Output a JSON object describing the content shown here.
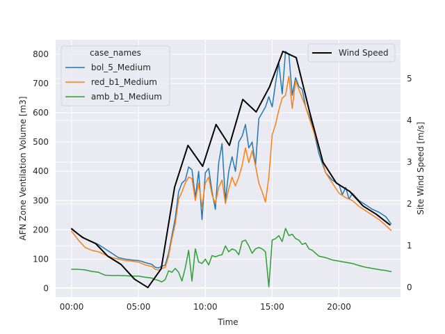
{
  "chart_data": {
    "type": "line",
    "xlabel": "Time",
    "ylabel_left": "AFN Zone Ventilation Volume [m3]",
    "ylabel_right": "Site Wind Speed [m/s]",
    "x_range_hours": [
      -1.2,
      24.6
    ],
    "x_ticks": [
      {
        "hour": 0,
        "label": "00:00"
      },
      {
        "hour": 5,
        "label": "05:00"
      },
      {
        "hour": 10,
        "label": "10:00"
      },
      {
        "hour": 15,
        "label": "15:00"
      },
      {
        "hour": 20,
        "label": "20:00"
      }
    ],
    "ylim_left": [
      -30,
      850
    ],
    "yticks_left": [
      0,
      100,
      200,
      300,
      400,
      500,
      600,
      700,
      800
    ],
    "ylim_right": [
      -0.23,
      5.93
    ],
    "yticks_right": [
      0,
      1,
      2,
      3,
      4,
      5
    ],
    "grid": true,
    "legend_left": {
      "title": "case_names",
      "placement": "upper-left"
    },
    "legend_right": {
      "placement": "upper-right"
    },
    "series": [
      {
        "name": "bol_5_Medium",
        "axis": "left",
        "color": "#1f77b4",
        "points": [
          [
            0,
            205
          ],
          [
            0.5,
            185
          ],
          [
            1,
            170
          ],
          [
            1.5,
            160
          ],
          [
            2,
            150
          ],
          [
            2.5,
            135
          ],
          [
            3,
            120
          ],
          [
            3.5,
            105
          ],
          [
            4,
            100
          ],
          [
            4.5,
            97
          ],
          [
            5,
            95
          ],
          [
            5.25,
            92
          ],
          [
            5.5,
            88
          ],
          [
            6,
            82
          ],
          [
            6.25,
            72
          ],
          [
            6.5,
            70
          ],
          [
            6.75,
            75
          ],
          [
            7,
            80
          ],
          [
            7.25,
            120
          ],
          [
            7.5,
            180
          ],
          [
            7.75,
            240
          ],
          [
            8,
            330
          ],
          [
            8.25,
            360
          ],
          [
            8.5,
            370
          ],
          [
            8.75,
            415
          ],
          [
            9,
            405
          ],
          [
            9.25,
            310
          ],
          [
            9.5,
            400
          ],
          [
            9.75,
            235
          ],
          [
            10,
            395
          ],
          [
            10.25,
            410
          ],
          [
            10.5,
            330
          ],
          [
            10.75,
            270
          ],
          [
            11,
            430
          ],
          [
            11.25,
            495
          ],
          [
            11.5,
            300
          ],
          [
            11.75,
            400
          ],
          [
            12,
            450
          ],
          [
            12.25,
            400
          ],
          [
            12.5,
            500
          ],
          [
            12.75,
            520
          ],
          [
            13,
            560
          ],
          [
            13.25,
            480
          ],
          [
            13.5,
            500
          ],
          [
            13.75,
            420
          ],
          [
            14,
            580
          ],
          [
            14.25,
            600
          ],
          [
            14.5,
            620
          ],
          [
            14.75,
            655
          ],
          [
            15,
            620
          ],
          [
            15.25,
            700
          ],
          [
            15.5,
            770
          ],
          [
            15.75,
            665
          ],
          [
            16,
            810
          ],
          [
            16.25,
            800
          ],
          [
            16.5,
            660
          ],
          [
            16.75,
            720
          ],
          [
            17,
            690
          ],
          [
            17.25,
            680
          ],
          [
            17.5,
            620
          ],
          [
            17.75,
            590
          ],
          [
            18,
            560
          ],
          [
            18.5,
            460
          ],
          [
            19,
            395
          ],
          [
            19.5,
            370
          ],
          [
            20,
            355
          ],
          [
            20.25,
            320
          ],
          [
            20.5,
            345
          ],
          [
            20.75,
            305
          ],
          [
            21,
            325
          ],
          [
            21.5,
            300
          ],
          [
            22,
            285
          ],
          [
            22.5,
            270
          ],
          [
            23,
            260
          ],
          [
            23.5,
            245
          ],
          [
            23.9,
            220
          ]
        ]
      },
      {
        "name": "red_b1_Medium",
        "axis": "left",
        "color": "#ff7f0e",
        "points": [
          [
            0,
            195
          ],
          [
            0.5,
            165
          ],
          [
            1,
            140
          ],
          [
            1.5,
            130
          ],
          [
            2,
            125
          ],
          [
            2.5,
            115
          ],
          [
            3,
            105
          ],
          [
            3.5,
            100
          ],
          [
            4,
            95
          ],
          [
            4.5,
            93
          ],
          [
            5,
            90
          ],
          [
            5.25,
            85
          ],
          [
            5.5,
            80
          ],
          [
            6,
            75
          ],
          [
            6.25,
            65
          ],
          [
            6.5,
            63
          ],
          [
            6.75,
            68
          ],
          [
            7,
            72
          ],
          [
            7.25,
            110
          ],
          [
            7.5,
            170
          ],
          [
            7.75,
            220
          ],
          [
            8,
            305
          ],
          [
            8.25,
            330
          ],
          [
            8.5,
            360
          ],
          [
            8.75,
            380
          ],
          [
            9,
            375
          ],
          [
            9.25,
            300
          ],
          [
            9.5,
            360
          ],
          [
            9.75,
            280
          ],
          [
            10,
            360
          ],
          [
            10.25,
            380
          ],
          [
            10.5,
            320
          ],
          [
            10.75,
            290
          ],
          [
            11,
            345
          ],
          [
            11.25,
            370
          ],
          [
            11.5,
            290
          ],
          [
            11.75,
            340
          ],
          [
            12,
            380
          ],
          [
            12.25,
            350
          ],
          [
            12.5,
            380
          ],
          [
            12.75,
            420
          ],
          [
            13,
            480
          ],
          [
            13.25,
            430
          ],
          [
            13.5,
            470
          ],
          [
            13.75,
            420
          ],
          [
            14,
            360
          ],
          [
            14.25,
            330
          ],
          [
            14.5,
            295
          ],
          [
            14.75,
            380
          ],
          [
            15,
            525
          ],
          [
            15.25,
            560
          ],
          [
            15.5,
            610
          ],
          [
            15.75,
            650
          ],
          [
            16,
            660
          ],
          [
            16.25,
            725
          ],
          [
            16.5,
            615
          ],
          [
            16.75,
            710
          ],
          [
            17,
            680
          ],
          [
            17.5,
            620
          ],
          [
            18,
            550
          ],
          [
            18.5,
            480
          ],
          [
            19,
            395
          ],
          [
            19.5,
            360
          ],
          [
            20,
            325
          ],
          [
            20.5,
            310
          ],
          [
            21,
            300
          ],
          [
            21.5,
            280
          ],
          [
            22,
            265
          ],
          [
            22.5,
            250
          ],
          [
            23,
            235
          ],
          [
            23.5,
            215
          ],
          [
            23.9,
            198
          ]
        ]
      },
      {
        "name": "amb_b1_Medium",
        "axis": "left",
        "color": "#2ca02c",
        "points": [
          [
            0,
            65
          ],
          [
            0.5,
            65
          ],
          [
            1,
            63
          ],
          [
            1.5,
            58
          ],
          [
            2,
            55
          ],
          [
            2.5,
            45
          ],
          [
            3,
            44
          ],
          [
            3.5,
            44
          ],
          [
            4,
            43
          ],
          [
            4.5,
            42
          ],
          [
            5,
            42
          ],
          [
            5.5,
            38
          ],
          [
            6,
            35
          ],
          [
            6.25,
            30
          ],
          [
            6.5,
            27
          ],
          [
            6.75,
            22
          ],
          [
            7,
            30
          ],
          [
            7.25,
            60
          ],
          [
            7.5,
            55
          ],
          [
            7.75,
            68
          ],
          [
            8,
            55
          ],
          [
            8.25,
            25
          ],
          [
            8.5,
            70
          ],
          [
            8.75,
            130
          ],
          [
            9,
            25
          ],
          [
            9.25,
            135
          ],
          [
            9.5,
            90
          ],
          [
            9.75,
            85
          ],
          [
            10,
            100
          ],
          [
            10.25,
            80
          ],
          [
            10.5,
            112
          ],
          [
            10.75,
            108
          ],
          [
            11,
            112
          ],
          [
            11.25,
            115
          ],
          [
            11.5,
            145
          ],
          [
            11.75,
            125
          ],
          [
            12,
            135
          ],
          [
            12.25,
            130
          ],
          [
            12.5,
            115
          ],
          [
            12.75,
            160
          ],
          [
            13,
            165
          ],
          [
            13.25,
            145
          ],
          [
            13.5,
            120
          ],
          [
            13.75,
            135
          ],
          [
            14,
            140
          ],
          [
            14.25,
            135
          ],
          [
            14.5,
            125
          ],
          [
            14.75,
            5
          ],
          [
            15,
            165
          ],
          [
            15.25,
            170
          ],
          [
            15.5,
            180
          ],
          [
            15.75,
            160
          ],
          [
            16,
            205
          ],
          [
            16.25,
            180
          ],
          [
            16.5,
            185
          ],
          [
            16.75,
            170
          ],
          [
            17,
            165
          ],
          [
            17.25,
            150
          ],
          [
            17.5,
            155
          ],
          [
            17.75,
            135
          ],
          [
            18,
            130
          ],
          [
            18.5,
            110
          ],
          [
            19,
            105
          ],
          [
            19.5,
            97
          ],
          [
            20,
            93
          ],
          [
            20.5,
            89
          ],
          [
            21,
            85
          ],
          [
            21.5,
            78
          ],
          [
            22,
            72
          ],
          [
            22.5,
            68
          ],
          [
            23,
            64
          ],
          [
            23.5,
            61
          ],
          [
            23.9,
            57
          ]
        ]
      },
      {
        "name": "Wind Speed",
        "axis": "right",
        "color": "#000000",
        "points": [
          [
            0,
            1.4
          ],
          [
            0.8,
            1.2
          ],
          [
            1.8,
            1.05
          ],
          [
            2.7,
            0.75
          ],
          [
            3.7,
            0.55
          ],
          [
            4.7,
            0.2
          ],
          [
            5.7,
            0.0
          ],
          [
            6.7,
            0.45
          ],
          [
            7.7,
            2.4
          ],
          [
            8.7,
            3.4
          ],
          [
            9.8,
            2.9
          ],
          [
            10.8,
            3.9
          ],
          [
            11.8,
            3.4
          ],
          [
            12.8,
            4.5
          ],
          [
            13.8,
            4.2
          ],
          [
            14.8,
            4.8
          ],
          [
            15.8,
            5.65
          ],
          [
            16.8,
            5.5
          ],
          [
            17.8,
            4.2
          ],
          [
            18.8,
            3.0
          ],
          [
            19.8,
            2.5
          ],
          [
            20.8,
            2.3
          ],
          [
            21.8,
            1.95
          ],
          [
            22.8,
            1.75
          ],
          [
            23.8,
            1.5
          ]
        ]
      }
    ]
  }
}
